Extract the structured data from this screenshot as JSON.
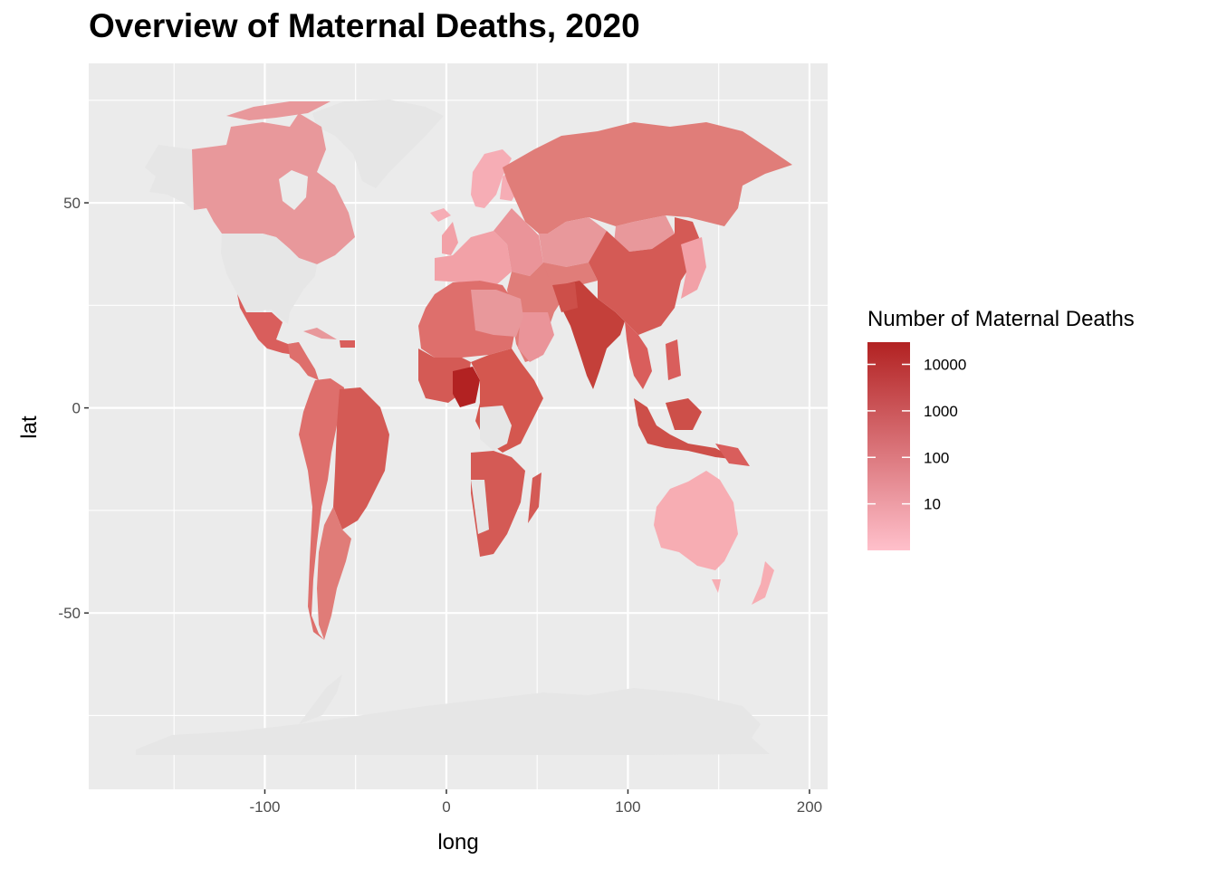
{
  "title": "Overview of Maternal Deaths, 2020",
  "chart_data": {
    "type": "choropleth-map",
    "title": "Overview of Maternal Deaths, 2020",
    "xlabel": "long",
    "ylabel": "lat",
    "xlim": [
      -197,
      210
    ],
    "ylim": [
      -93,
      84
    ],
    "x_ticks": [
      -100,
      0,
      100,
      200
    ],
    "y_ticks": [
      -50,
      0,
      50
    ],
    "grid": true,
    "legend": {
      "title": "Number of Maternal Deaths",
      "placement": "right",
      "scale": "log10",
      "breaks": [
        10000,
        1000,
        100,
        10
      ],
      "range": [
        1,
        30000
      ],
      "color_low": "#ffc0cb",
      "color_high": "#b22222",
      "no_data_color": "#e6e6e6"
    },
    "regions": [
      {
        "region": "Canada",
        "deaths": 50
      },
      {
        "region": "Greenland",
        "deaths": null
      },
      {
        "region": "USA",
        "deaths": null
      },
      {
        "region": "Mexico",
        "deaths": 1400
      },
      {
        "region": "Brazil",
        "deaths": 3000
      },
      {
        "region": "Argentina",
        "deaths": 300
      },
      {
        "region": "Russia",
        "deaths": 300
      },
      {
        "region": "China",
        "deaths": 3300
      },
      {
        "region": "India",
        "deaths": 24000
      },
      {
        "region": "Nigeria",
        "deaths": 82000
      },
      {
        "region": "Australia",
        "deaths": 10
      },
      {
        "region": "Antarctica",
        "deaths": null
      }
    ]
  }
}
